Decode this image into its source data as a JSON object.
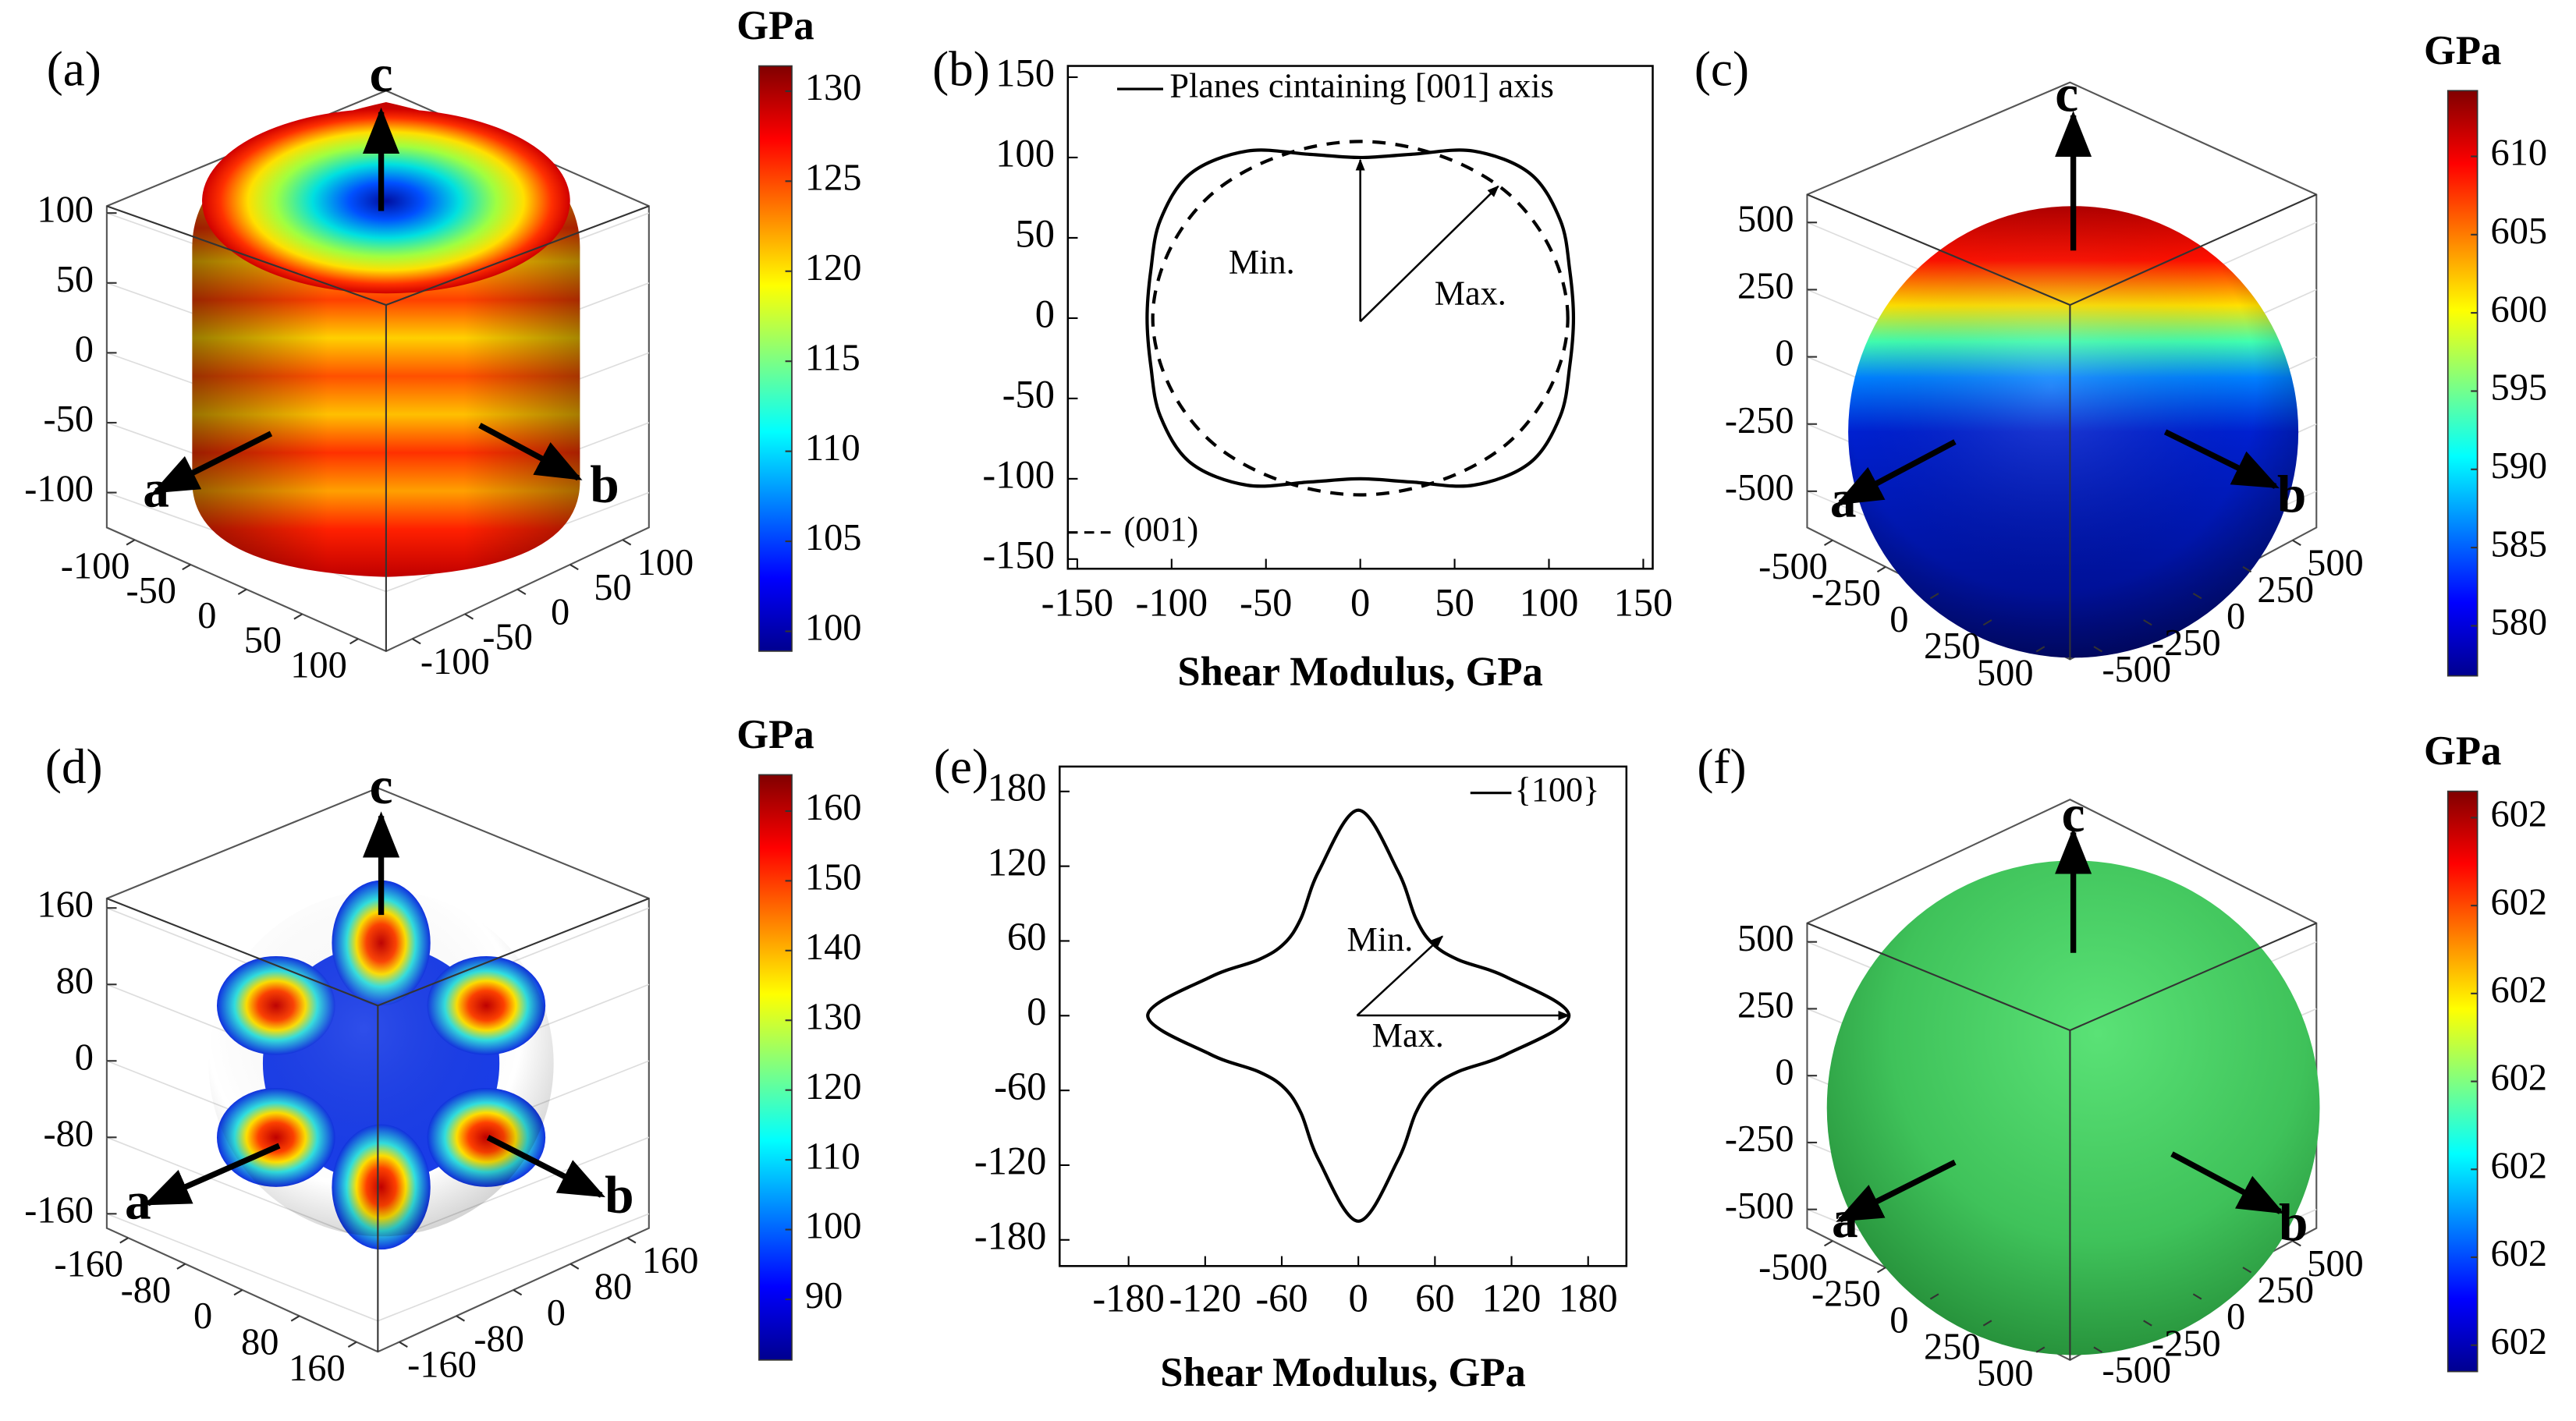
{
  "chart_data": [
    {
      "type": "surface3d",
      "label": "(a)",
      "colorbar_title": "GPa",
      "clim": [
        98.9,
        131.4
      ],
      "cticks": [
        100,
        105,
        110,
        115,
        120,
        125,
        130
      ],
      "axis_labels": [
        "a",
        "b",
        "c"
      ],
      "xlim": [
        -125,
        125
      ],
      "xticks": [
        -100,
        -50,
        0,
        50,
        100
      ],
      "ylim": [
        -125,
        125
      ],
      "yticks": [
        -100,
        -50,
        0,
        50,
        100
      ],
      "zlim": [
        -125,
        105
      ],
      "zticks": [
        -100,
        -50,
        0,
        50,
        100
      ]
    },
    {
      "type": "line",
      "label": "(b)",
      "xlabel": "Shear Modulus, GPa",
      "xlim": [
        -155,
        155
      ],
      "xticks": [
        -150,
        -100,
        -50,
        0,
        50,
        100,
        150
      ],
      "ylim": [
        -156,
        157
      ],
      "yticks": [
        -150,
        -100,
        -50,
        0,
        50,
        100,
        150
      ],
      "series": [
        {
          "name": "Planes cintaining [001] axis",
          "style": "solid",
          "color": "#000000",
          "x": [
            113,
            111,
            106,
            90,
            60,
            27,
            0,
            -27,
            -60,
            -90,
            -106,
            -111,
            -113,
            -111,
            -106,
            -90,
            -60,
            -27,
            0,
            27,
            60,
            90,
            106,
            111
          ],
          "y": [
            0,
            30,
            61,
            90,
            104,
            102,
            100,
            102,
            104,
            90,
            61,
            30,
            0,
            -30,
            -61,
            -90,
            -104,
            -102,
            -100,
            -102,
            -104,
            -90,
            -61,
            -30
          ]
        },
        {
          "name": "(001)",
          "style": "dashed",
          "color": "#000000",
          "x": [
            110,
            106,
            95,
            78,
            55,
            28,
            0,
            -28,
            -55,
            -78,
            -95,
            -106,
            -110,
            -106,
            -95,
            -78,
            -55,
            -28,
            0,
            28,
            55,
            78,
            95,
            106
          ],
          "y": [
            0,
            28,
            55,
            78,
            95,
            106,
            110,
            106,
            95,
            78,
            55,
            28,
            0,
            -28,
            -55,
            -78,
            -95,
            -106,
            -110,
            -106,
            -95,
            -78,
            -55,
            -28
          ]
        }
      ],
      "annotations": [
        "Min.",
        "Max."
      ]
    },
    {
      "type": "surface3d",
      "label": "(c)",
      "colorbar_title": "GPa",
      "clim": [
        576.8,
        614.2
      ],
      "cticks": [
        580,
        585,
        590,
        595,
        600,
        605,
        610
      ],
      "axis_labels": [
        "a",
        "b",
        "c"
      ],
      "xlim": [
        -620,
        620
      ],
      "xticks": [
        -500,
        -250,
        0,
        250,
        500
      ],
      "ylim": [
        -620,
        620
      ],
      "yticks": [
        -500,
        -250,
        0,
        250,
        500
      ],
      "zlim": [
        -635,
        604
      ],
      "zticks": [
        -500,
        -250,
        0,
        250,
        500
      ]
    },
    {
      "type": "surface3d",
      "label": "(d)",
      "colorbar_title": "GPa",
      "clim": [
        81.3,
        165.2
      ],
      "cticks": [
        90,
        100,
        110,
        120,
        130,
        140,
        150,
        160
      ],
      "axis_labels": [
        "a",
        "b",
        "c"
      ],
      "xlim": [
        -190,
        190
      ],
      "xticks": [
        -160,
        -80,
        0,
        80,
        160
      ],
      "ylim": [
        -190,
        190
      ],
      "yticks": [
        -160,
        -80,
        0,
        80,
        160
      ],
      "zlim": [
        -175,
        170
      ],
      "zticks": [
        -160,
        -80,
        0,
        80,
        160
      ]
    },
    {
      "type": "line",
      "label": "(e)",
      "xlabel": "Shear Modulus, GPa",
      "xlim": [
        -234,
        210
      ],
      "xticks": [
        -180,
        -120,
        -60,
        0,
        60,
        120,
        180
      ],
      "ylim": [
        -201,
        200
      ],
      "yticks": [
        -180,
        -120,
        -60,
        0,
        60,
        120,
        180
      ],
      "series": [
        {
          "name": "{100}",
          "style": "solid",
          "color": "#000000",
          "x": [
            165,
            116,
            78,
            58,
            45,
            31,
            0,
            -31,
            -45,
            -58,
            -78,
            -116,
            -165,
            -116,
            -78,
            -58,
            -45,
            -31,
            0,
            31,
            45,
            58,
            78,
            116
          ],
          "y": [
            0,
            31,
            45,
            58,
            78,
            116,
            165,
            116,
            78,
            58,
            45,
            31,
            0,
            -31,
            -45,
            -58,
            -78,
            -116,
            -165,
            -116,
            -78,
            -58,
            -45,
            -31
          ]
        }
      ],
      "annotations": [
        "Min.",
        "Max."
      ]
    },
    {
      "type": "surface3d",
      "label": "(f)",
      "colorbar_title": "GPa",
      "clim": [
        601.9967,
        602.0033
      ],
      "cticks": [
        {
          "value": 601.997,
          "label": "602"
        },
        {
          "value": 601.998,
          "label": "602"
        },
        {
          "value": 601.999,
          "label": "602"
        },
        602,
        {
          "value": 602.001,
          "label": "602"
        },
        {
          "value": 602.002,
          "label": "602"
        },
        {
          "value": 602.003,
          "label": "602"
        }
      ],
      "axis_labels": [
        "a",
        "b",
        "c"
      ],
      "xlim": [
        -620,
        620
      ],
      "xticks": [
        -500,
        -250,
        0,
        250,
        500
      ],
      "ylim": [
        -620,
        620
      ],
      "yticks": [
        -500,
        -250,
        0,
        250,
        500
      ],
      "zlim": [
        -570,
        570
      ],
      "zticks": [
        -500,
        -250,
        0,
        250,
        500
      ]
    }
  ]
}
